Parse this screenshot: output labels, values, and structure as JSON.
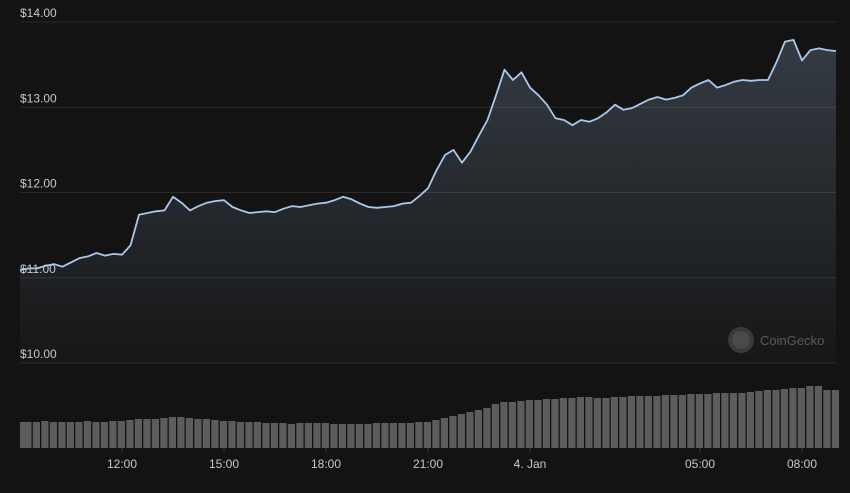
{
  "chart_data": {
    "type": "line",
    "watermark": "CoinGecko",
    "x": [
      9,
      9.25,
      9.5,
      9.75,
      10,
      10.25,
      10.5,
      10.75,
      11,
      11.25,
      11.5,
      11.75,
      12,
      12.25,
      12.5,
      12.75,
      13,
      13.25,
      13.5,
      13.75,
      14,
      14.25,
      14.5,
      14.75,
      15,
      15.25,
      15.5,
      15.75,
      16,
      16.25,
      16.5,
      16.75,
      17,
      17.25,
      17.5,
      17.75,
      18,
      18.25,
      18.5,
      18.75,
      19,
      19.25,
      19.5,
      19.75,
      20,
      20.25,
      20.5,
      20.75,
      21,
      21.25,
      21.5,
      21.75,
      22,
      22.25,
      22.5,
      22.75,
      23,
      23.25,
      23.5,
      23.75,
      24,
      24.25,
      24.5,
      24.75,
      25,
      25.25,
      25.5,
      25.75,
      26,
      26.25,
      26.5,
      26.75,
      27,
      27.25,
      27.5,
      27.75,
      28,
      28.25,
      28.5,
      28.75,
      29,
      29.25,
      29.5,
      29.75,
      30,
      30.25,
      30.5,
      30.75,
      31,
      31.25,
      31.5,
      31.75,
      32,
      32.25,
      32.5,
      32.75,
      33
    ],
    "series": [
      {
        "color": "#a9c9ec",
        "values": [
          11.09,
          11.11,
          11.11,
          11.14,
          11.16,
          11.13,
          11.18,
          11.23,
          11.25,
          11.29,
          11.26,
          11.28,
          11.27,
          11.38,
          11.74,
          11.76,
          11.78,
          11.79,
          11.95,
          11.88,
          11.79,
          11.84,
          11.88,
          11.9,
          11.91,
          11.83,
          11.79,
          11.76,
          11.77,
          11.78,
          11.77,
          11.81,
          11.84,
          11.83,
          11.85,
          11.87,
          11.88,
          11.91,
          11.95,
          11.92,
          11.87,
          11.83,
          11.82,
          11.83,
          11.84,
          11.87,
          11.88,
          11.96,
          12.05,
          12.26,
          12.44,
          12.5,
          12.35,
          12.48,
          12.67,
          12.85,
          13.14,
          13.44,
          13.32,
          13.41,
          13.23,
          13.14,
          13.03,
          12.87,
          12.85,
          12.79,
          12.85,
          12.83,
          12.87,
          12.94,
          13.03,
          12.97,
          12.99,
          13.04,
          13.09,
          13.12,
          13.09,
          13.11,
          13.14,
          13.23,
          13.28,
          13.32,
          13.23,
          13.26,
          13.3,
          13.32,
          13.31,
          13.32,
          13.32,
          13.53,
          13.77,
          13.79,
          13.55,
          13.67,
          13.69,
          13.67,
          13.66
        ]
      },
      {
        "color": "#5c5c5c",
        "values": [
          26,
          26,
          26,
          27,
          26,
          26,
          26,
          26,
          27,
          26,
          26,
          27,
          27,
          28,
          29,
          29,
          29,
          30,
          31,
          31,
          30,
          29,
          29,
          28,
          27,
          27,
          26,
          26,
          26,
          25,
          25,
          25,
          24,
          25,
          25,
          25,
          25,
          24,
          24,
          24,
          24,
          24,
          25,
          25,
          25,
          25,
          25,
          26,
          26,
          28,
          30,
          32,
          34,
          36,
          38,
          40,
          44,
          46,
          46,
          47,
          48,
          48,
          49,
          49,
          50,
          50,
          51,
          51,
          50,
          50,
          51,
          51,
          52,
          52,
          52,
          52,
          53,
          53,
          53,
          54,
          54,
          54,
          55,
          55,
          55,
          55,
          56,
          57,
          58,
          58,
          59,
          60,
          60,
          62,
          62,
          58,
          58
        ]
      }
    ],
    "xlim": [
      9,
      33
    ],
    "xticks": [
      {
        "value": 12,
        "label": "12:00"
      },
      {
        "value": 15,
        "label": "15:00"
      },
      {
        "value": 18,
        "label": "18:00"
      },
      {
        "value": 21,
        "label": "21:00"
      },
      {
        "value": 24,
        "label": "4. Jan"
      },
      {
        "value": 29,
        "label": "05:00"
      },
      {
        "value": 32,
        "label": "08:00"
      }
    ],
    "ylim": [
      10,
      14
    ],
    "yticks": [
      {
        "value": 10,
        "label": "$10.00"
      },
      {
        "value": 11,
        "label": "$11.00"
      },
      {
        "value": 12,
        "label": "$12.00"
      },
      {
        "value": 13,
        "label": "$13.00"
      },
      {
        "value": 14,
        "label": "$14.00"
      }
    ],
    "grid": true
  }
}
